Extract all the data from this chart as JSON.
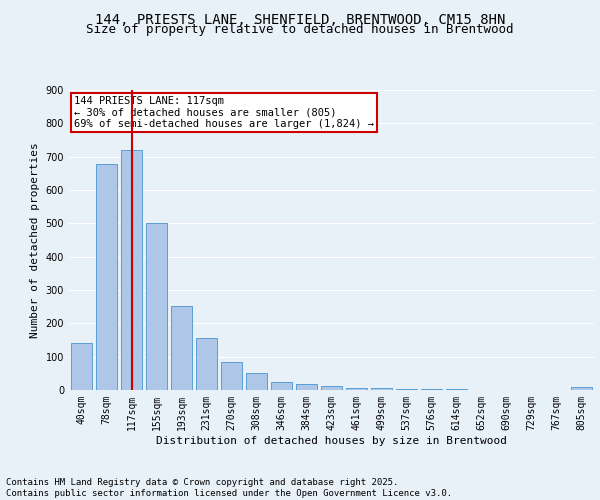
{
  "title_line1": "144, PRIESTS LANE, SHENFIELD, BRENTWOOD, CM15 8HN",
  "title_line2": "Size of property relative to detached houses in Brentwood",
  "xlabel": "Distribution of detached houses by size in Brentwood",
  "ylabel": "Number of detached properties",
  "categories": [
    "40sqm",
    "78sqm",
    "117sqm",
    "155sqm",
    "193sqm",
    "231sqm",
    "270sqm",
    "308sqm",
    "346sqm",
    "384sqm",
    "423sqm",
    "461sqm",
    "499sqm",
    "537sqm",
    "576sqm",
    "614sqm",
    "652sqm",
    "690sqm",
    "729sqm",
    "767sqm",
    "805sqm"
  ],
  "values": [
    140,
    678,
    720,
    500,
    253,
    157,
    85,
    50,
    25,
    18,
    12,
    7,
    5,
    4,
    3,
    2,
    1,
    1,
    0,
    0,
    8
  ],
  "bar_color": "#aec6e8",
  "bar_edge_color": "#5a9fd4",
  "vline_index": 2,
  "vline_color": "#cc0000",
  "annotation_text": "144 PRIESTS LANE: 117sqm\n← 30% of detached houses are smaller (805)\n69% of semi-detached houses are larger (1,824) →",
  "annotation_box_color": "#ffffff",
  "annotation_box_edge": "#cc0000",
  "ylim": [
    0,
    900
  ],
  "yticks": [
    0,
    100,
    200,
    300,
    400,
    500,
    600,
    700,
    800,
    900
  ],
  "background_color": "#e8f0f8",
  "grid_color": "#ffffff",
  "footer_text": "Contains HM Land Registry data © Crown copyright and database right 2025.\nContains public sector information licensed under the Open Government Licence v3.0.",
  "title_fontsize": 10,
  "subtitle_fontsize": 9,
  "axis_label_fontsize": 8,
  "tick_fontsize": 7,
  "annotation_fontsize": 7.5,
  "footer_fontsize": 6.5
}
